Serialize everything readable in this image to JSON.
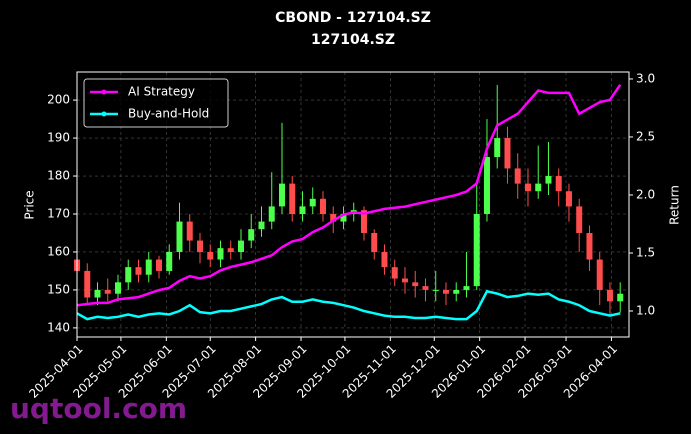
{
  "chart_data": {
    "type": "candlestick",
    "title": "CBOND - 127104.SZ",
    "subtitle": "127104.SZ",
    "ylabel": "Price",
    "y2label": "Return",
    "watermark": "uqtool.com",
    "x": [
      "2025-04-01",
      "2025-04-08",
      "2025-04-15",
      "2025-04-22",
      "2025-04-29",
      "2025-05-06",
      "2025-05-13",
      "2025-05-20",
      "2025-05-27",
      "2025-06-03",
      "2025-06-10",
      "2025-06-17",
      "2025-06-24",
      "2025-07-01",
      "2025-07-08",
      "2025-07-15",
      "2025-07-22",
      "2025-07-29",
      "2025-08-05",
      "2025-08-12",
      "2025-08-19",
      "2025-08-26",
      "2025-09-02",
      "2025-09-09",
      "2025-09-16",
      "2025-09-23",
      "2025-09-30",
      "2025-10-07",
      "2025-10-14",
      "2025-10-21",
      "2025-10-28",
      "2025-11-04",
      "2025-11-11",
      "2025-11-18",
      "2025-11-25",
      "2025-12-02",
      "2025-12-09",
      "2025-12-16",
      "2025-12-23",
      "2025-12-30",
      "2026-01-06",
      "2026-01-13",
      "2026-01-20",
      "2026-01-27",
      "2026-02-03",
      "2026-02-10",
      "2026-02-17",
      "2026-02-24",
      "2026-03-03",
      "2026-03-10",
      "2026-03-17",
      "2026-03-24",
      "2026-03-31",
      "2026-04-07"
    ],
    "open": [
      158,
      155,
      148,
      150,
      149,
      152,
      156,
      154,
      158,
      155,
      160,
      168,
      163,
      160,
      158,
      161,
      160,
      163,
      166,
      168,
      172,
      178,
      170,
      172,
      174,
      170,
      168,
      170,
      171,
      165,
      160,
      156,
      153,
      152,
      151,
      150,
      150,
      149,
      150,
      151,
      170,
      185,
      190,
      182,
      178,
      176,
      178,
      180,
      176,
      172,
      165,
      158,
      150,
      147
    ],
    "high": [
      160,
      157,
      152,
      153,
      154,
      158,
      158,
      160,
      159,
      162,
      173,
      170,
      165,
      162,
      163,
      163,
      166,
      170,
      172,
      181,
      194,
      180,
      176,
      177,
      176,
      172,
      172,
      173,
      172,
      166,
      162,
      158,
      156,
      155,
      153,
      155,
      152,
      152,
      160,
      178,
      195,
      204,
      193,
      186,
      182,
      188,
      189,
      182,
      178,
      174,
      167,
      160,
      152,
      152
    ],
    "low": [
      152,
      146,
      146,
      147,
      147,
      150,
      152,
      152,
      153,
      154,
      158,
      160,
      157,
      156,
      156,
      158,
      158,
      161,
      164,
      166,
      170,
      168,
      168,
      170,
      168,
      165,
      166,
      168,
      163,
      158,
      154,
      151,
      149,
      148,
      147,
      147,
      146,
      147,
      148,
      150,
      168,
      182,
      178,
      174,
      172,
      174,
      175,
      172,
      168,
      160,
      155,
      146,
      143,
      144
    ],
    "close": [
      155,
      148,
      150,
      149,
      152,
      156,
      154,
      158,
      155,
      160,
      168,
      163,
      160,
      158,
      161,
      160,
      163,
      166,
      168,
      172,
      178,
      170,
      172,
      174,
      170,
      168,
      170,
      171,
      165,
      160,
      156,
      153,
      152,
      151,
      150,
      150,
      149,
      150,
      151,
      170,
      185,
      190,
      182,
      178,
      176,
      178,
      180,
      176,
      172,
      165,
      158,
      150,
      147,
      149
    ],
    "up_color": "#4cff4c",
    "down_color": "#ff4c4c",
    "series": [
      {
        "name": "AI Strategy",
        "color": "#ff00ff",
        "axis": "y2",
        "values": [
          1.05,
          1.06,
          1.07,
          1.07,
          1.1,
          1.11,
          1.12,
          1.15,
          1.18,
          1.2,
          1.26,
          1.3,
          1.28,
          1.3,
          1.35,
          1.38,
          1.4,
          1.42,
          1.45,
          1.48,
          1.55,
          1.6,
          1.62,
          1.68,
          1.72,
          1.78,
          1.83,
          1.85,
          1.84,
          1.86,
          1.88,
          1.89,
          1.9,
          1.92,
          1.94,
          1.96,
          1.98,
          2.0,
          2.03,
          2.1,
          2.4,
          2.6,
          2.65,
          2.7,
          2.8,
          2.9,
          2.88,
          2.88,
          2.88,
          2.7,
          2.75,
          2.8,
          2.82,
          2.95
        ]
      },
      {
        "name": "Buy-and-Hold",
        "color": "#00ffff",
        "axis": "y2",
        "values": [
          0.98,
          0.93,
          0.95,
          0.94,
          0.95,
          0.97,
          0.95,
          0.97,
          0.98,
          0.97,
          1.0,
          1.05,
          0.99,
          0.98,
          1.0,
          1.0,
          1.02,
          1.04,
          1.06,
          1.1,
          1.12,
          1.08,
          1.08,
          1.1,
          1.08,
          1.07,
          1.05,
          1.03,
          1.0,
          0.98,
          0.96,
          0.95,
          0.95,
          0.94,
          0.94,
          0.95,
          0.94,
          0.93,
          0.93,
          1.0,
          1.17,
          1.15,
          1.12,
          1.13,
          1.15,
          1.14,
          1.15,
          1.1,
          1.08,
          1.05,
          1.0,
          0.98,
          0.96,
          0.98
        ]
      }
    ],
    "xlim": [
      "2025-04-01",
      "2026-04-13"
    ],
    "xticks": [
      "2025-04-01",
      "2025-05-01",
      "2025-06-01",
      "2025-07-01",
      "2025-08-01",
      "2025-09-01",
      "2025-10-01",
      "2025-11-01",
      "2025-12-01",
      "2026-01-01",
      "2026-02-01",
      "2026-03-01",
      "2026-04-01"
    ],
    "ylim": [
      137.6,
      207.4
    ],
    "yticks": [
      140,
      150,
      160,
      170,
      180,
      190,
      200
    ],
    "y2lim": [
      0.776,
      3.06
    ],
    "y2ticks": [
      {
        "value": 1,
        "label": "1.0"
      },
      1.5,
      {
        "value": 2,
        "label": "2.0"
      },
      2.5,
      {
        "value": 3,
        "label": "3.0"
      }
    ],
    "grid": true,
    "legend": "upper left"
  }
}
